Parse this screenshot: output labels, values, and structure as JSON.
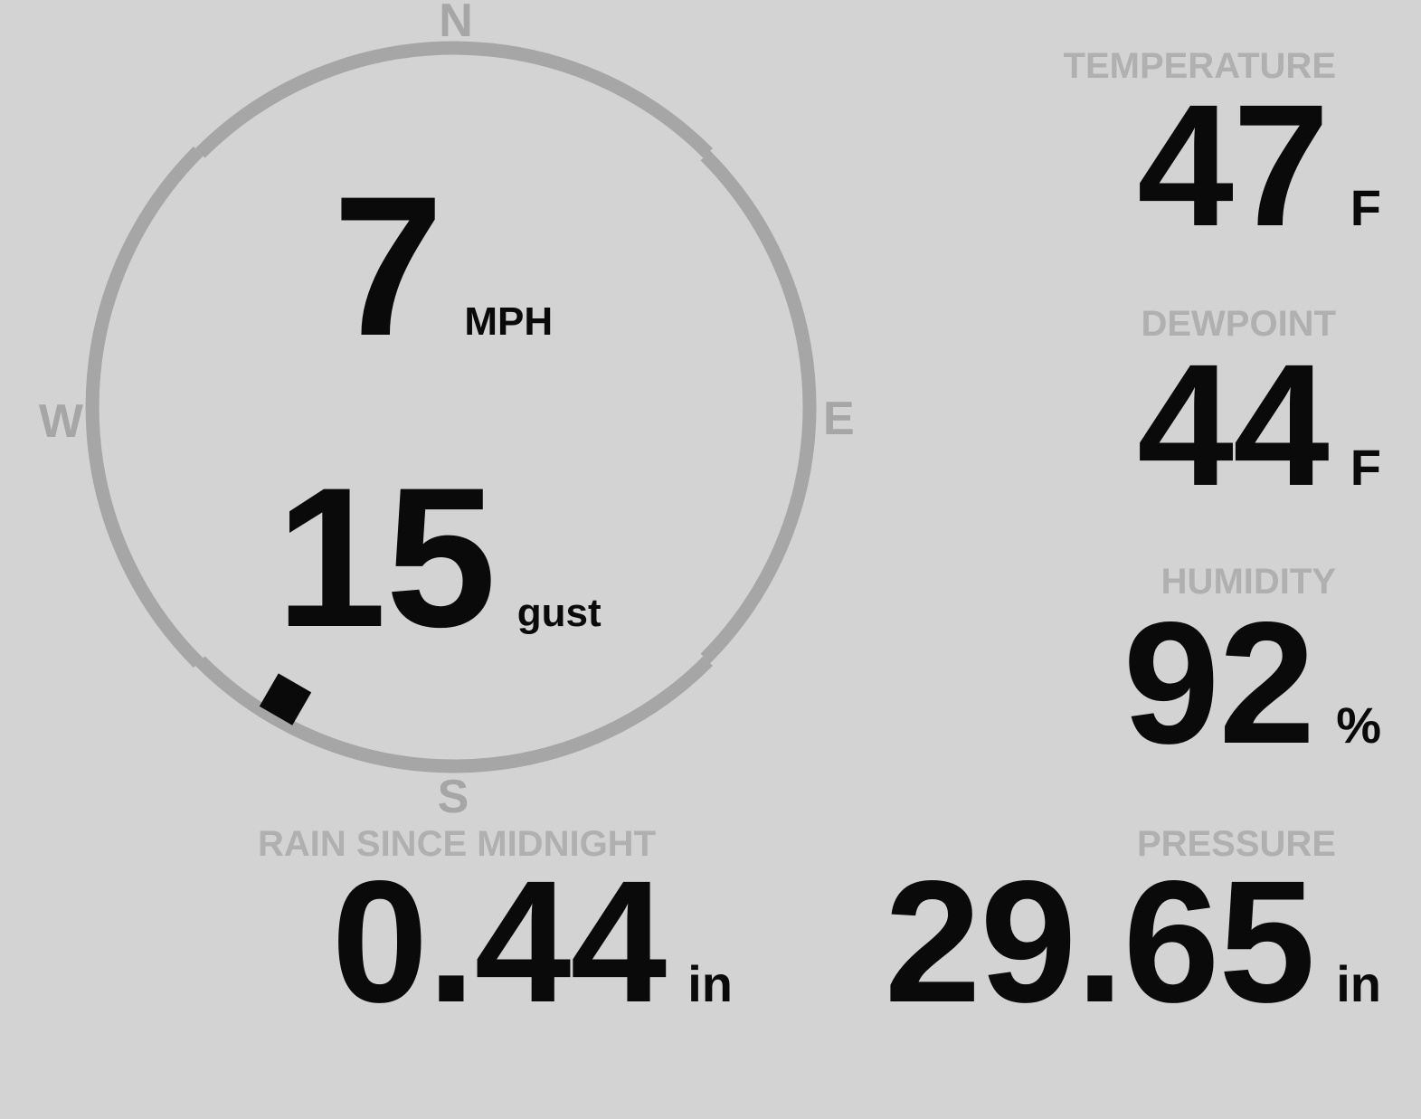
{
  "colors": {
    "background": "#d3d3d3",
    "compass_ring": "#a6a6a6",
    "section_label": "#b0b0b0",
    "value_text": "#0a0a0a"
  },
  "compass": {
    "cardinals": {
      "north": "N",
      "east": "E",
      "south": "S",
      "west": "W"
    },
    "wind_direction_deg": 210
  },
  "wind": {
    "speed_value": "7",
    "speed_unit": "MPH",
    "gust_value": "15",
    "gust_unit": "gust"
  },
  "metrics": {
    "temperature": {
      "label": "TEMPERATURE",
      "value": "47",
      "unit": "F"
    },
    "dewpoint": {
      "label": "DEWPOINT",
      "value": "44",
      "unit": "F"
    },
    "humidity": {
      "label": "HUMIDITY",
      "value": "92",
      "unit": "%"
    },
    "rain": {
      "label": "RAIN SINCE MIDNIGHT",
      "value": "0.44",
      "unit": "in"
    },
    "pressure": {
      "label": "PRESSURE",
      "value": "29.65",
      "unit": "in"
    }
  }
}
